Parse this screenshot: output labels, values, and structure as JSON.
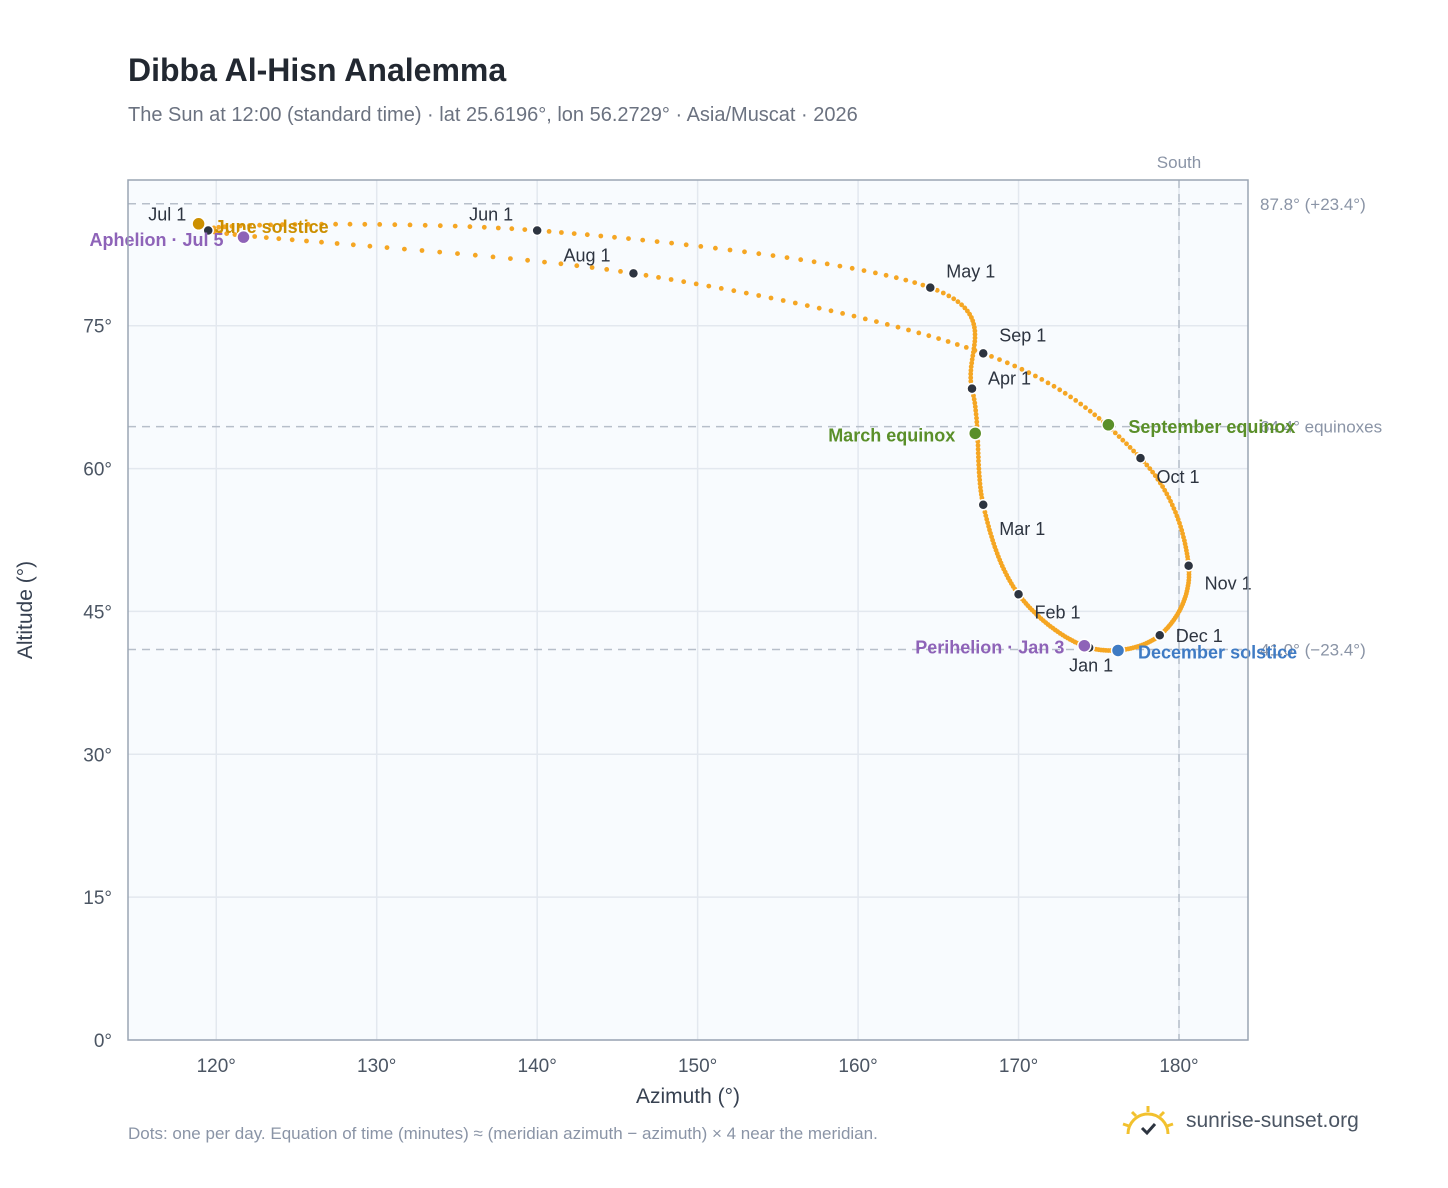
{
  "header": {
    "title": "Dibba Al-Hisn Analemma",
    "subtitle": "The Sun at 12:00 (standard time) · lat 25.6196°, lon 56.2729° · Asia/Muscat · 2026"
  },
  "footer": {
    "note": "Dots: one per day. Equation of time (minutes) ≈ (meridian azimuth − azimuth) × 4 near the meridian.",
    "brand": "sunrise-sunset.org"
  },
  "colors": {
    "curve": "#f5a623",
    "month_marker": "#2d3440",
    "equinox": "#5a8f29",
    "june_solstice": "#cc8f00",
    "december_solstice": "#3f7bc4",
    "apsides": "#8e63b8",
    "plot_bg": "#f8fbfe",
    "grid": "#e3e8ef",
    "axis": "#9aa5b4",
    "reference": "#b7bfca"
  },
  "chart_data": {
    "type": "scatter",
    "xlabel": "Azimuth (°)",
    "ylabel": "Altitude (°)",
    "xlim": [
      114.5,
      184.3
    ],
    "ylim": [
      0,
      90.3
    ],
    "xticks": [
      120,
      130,
      140,
      150,
      160,
      170,
      180
    ],
    "xtick_labels": [
      "120°",
      "130°",
      "140°",
      "150°",
      "160°",
      "170°",
      "180°"
    ],
    "yticks": [
      0,
      15,
      30,
      45,
      60,
      75
    ],
    "ytick_labels": [
      "0°",
      "15°",
      "30°",
      "45°",
      "60°",
      "75°"
    ],
    "grid": true,
    "reference_lines": {
      "vertical": [
        {
          "x": 180,
          "label": "South"
        }
      ],
      "horizontal": [
        {
          "y": 87.8,
          "label": "87.8° (+23.4°)"
        },
        {
          "y": 64.4,
          "label": "64.4° equinoxes"
        },
        {
          "y": 41.0,
          "label": "41.0° (−23.4°)"
        }
      ]
    },
    "month_markers": [
      {
        "label": "Jan 1",
        "x": 174.4,
        "y": 41.2
      },
      {
        "label": "Feb 1",
        "x": 170.0,
        "y": 46.8
      },
      {
        "label": "Mar 1",
        "x": 167.8,
        "y": 56.2
      },
      {
        "label": "Apr 1",
        "x": 167.1,
        "y": 68.4
      },
      {
        "label": "May 1",
        "x": 164.5,
        "y": 79.0
      },
      {
        "label": "Jun 1",
        "x": 140.0,
        "y": 85.0
      },
      {
        "label": "Jul 1",
        "x": 119.5,
        "y": 85.0
      },
      {
        "label": "Aug 1",
        "x": 146.0,
        "y": 80.5
      },
      {
        "label": "Sep 1",
        "x": 167.8,
        "y": 72.1
      },
      {
        "label": "Oct 1",
        "x": 177.6,
        "y": 61.1
      },
      {
        "label": "Nov 1",
        "x": 180.6,
        "y": 49.8
      },
      {
        "label": "Dec 1",
        "x": 178.8,
        "y": 42.5
      }
    ],
    "events": [
      {
        "label": "March equinox",
        "x": 167.3,
        "y": 63.7,
        "color_key": "equinox"
      },
      {
        "label": "June solstice",
        "x": 118.9,
        "y": 85.7,
        "color_key": "june_solstice"
      },
      {
        "label": "September equinox",
        "x": 175.6,
        "y": 64.6,
        "color_key": "equinox"
      },
      {
        "label": "December solstice",
        "x": 176.2,
        "y": 40.9,
        "color_key": "december_solstice"
      },
      {
        "label": "Perihelion · Jan 3",
        "x": 174.1,
        "y": 41.4,
        "color_key": "apsides"
      },
      {
        "label": "Aphelion · Jul 5",
        "x": 121.7,
        "y": 84.3,
        "color_key": "apsides"
      }
    ]
  }
}
